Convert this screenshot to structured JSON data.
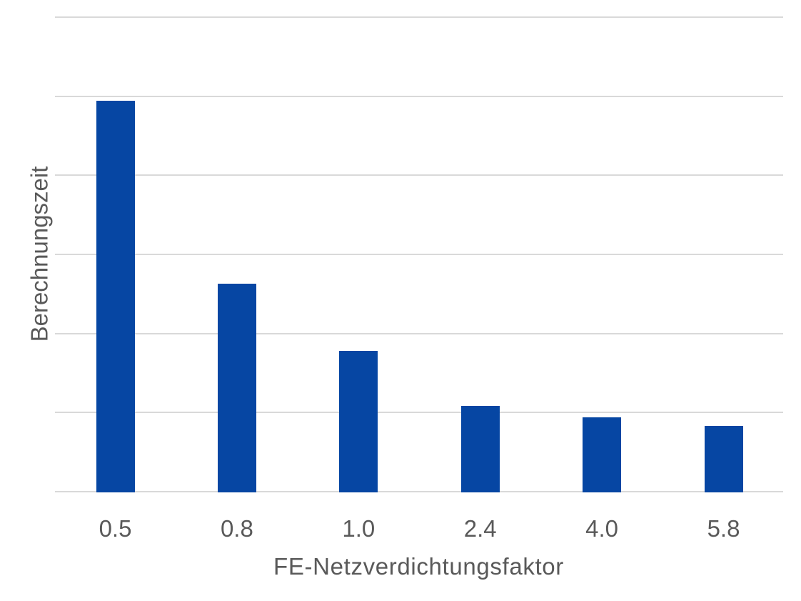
{
  "chart_data": {
    "type": "bar",
    "categories": [
      "0.5",
      "0.8",
      "1.0",
      "2.4",
      "4.0",
      "5.8"
    ],
    "values": [
      4.94,
      2.63,
      1.78,
      1.08,
      0.94,
      0.83
    ],
    "title": "",
    "xlabel": "FE-Netzverdichtungsfaktor",
    "ylabel": "Berechnungszeit",
    "ylim": [
      0,
      6
    ],
    "y_gridline_step": 1,
    "y_tick_labels_visible": false,
    "grid": "horizontal",
    "legend": false,
    "colors": {
      "bar": "#0646A3",
      "gridline": "#D9D9D9",
      "text": "#595959",
      "background": "#FFFFFF"
    }
  }
}
